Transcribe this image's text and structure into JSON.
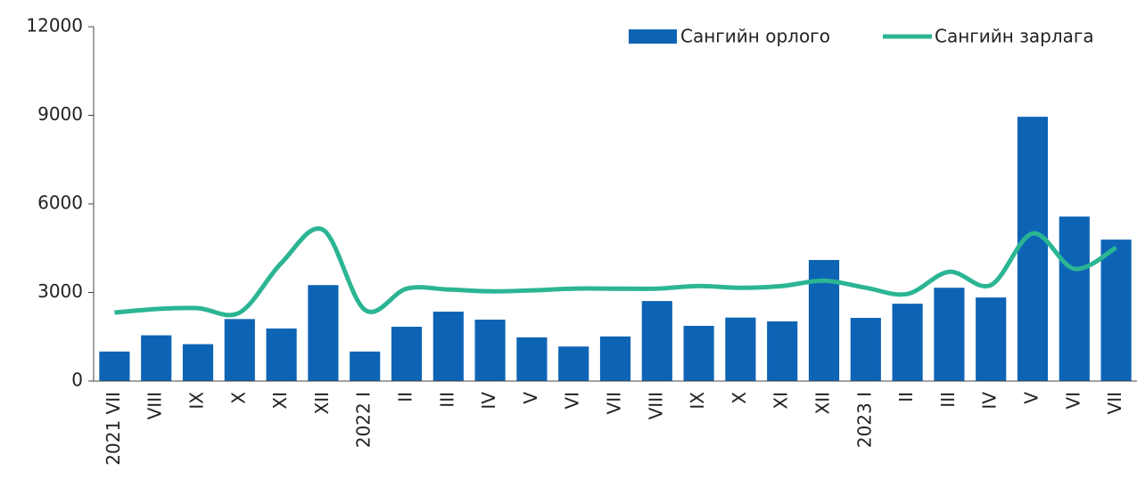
{
  "chart_data": {
    "type": "bar-line",
    "categories": [
      "2021 VII",
      "VIII",
      "IX",
      "X",
      "XI",
      "XII",
      "2022 I",
      "II",
      "III",
      "IV",
      "V",
      "VI",
      "VII",
      "VIII",
      "IX",
      "X",
      "XI",
      "XII",
      "2023 I",
      "II",
      "III",
      "IV",
      "V",
      "VI",
      "VII"
    ],
    "series": [
      {
        "name": "Сангийн орлого",
        "type": "bar",
        "color": "#0d64b5",
        "values": [
          1000,
          1550,
          1250,
          2100,
          1780,
          3250,
          1000,
          1840,
          2350,
          2080,
          1480,
          1170,
          1510,
          2710,
          1870,
          2150,
          2020,
          4100,
          2140,
          2620,
          3160,
          2830,
          8950,
          5570,
          4790
        ]
      },
      {
        "name": "Сангийн зарлага",
        "type": "line",
        "color": "#2bb593",
        "values": [
          2320,
          2440,
          2470,
          2320,
          4000,
          5120,
          2410,
          3130,
          3100,
          3040,
          3070,
          3130,
          3130,
          3130,
          3220,
          3160,
          3220,
          3400,
          3160,
          2950,
          3700,
          3250,
          5000,
          3800,
          4520
        ]
      }
    ],
    "ylim": [
      0,
      12000
    ],
    "yticks": [
      0,
      3000,
      6000,
      9000,
      12000
    ],
    "legend": "top-right"
  }
}
